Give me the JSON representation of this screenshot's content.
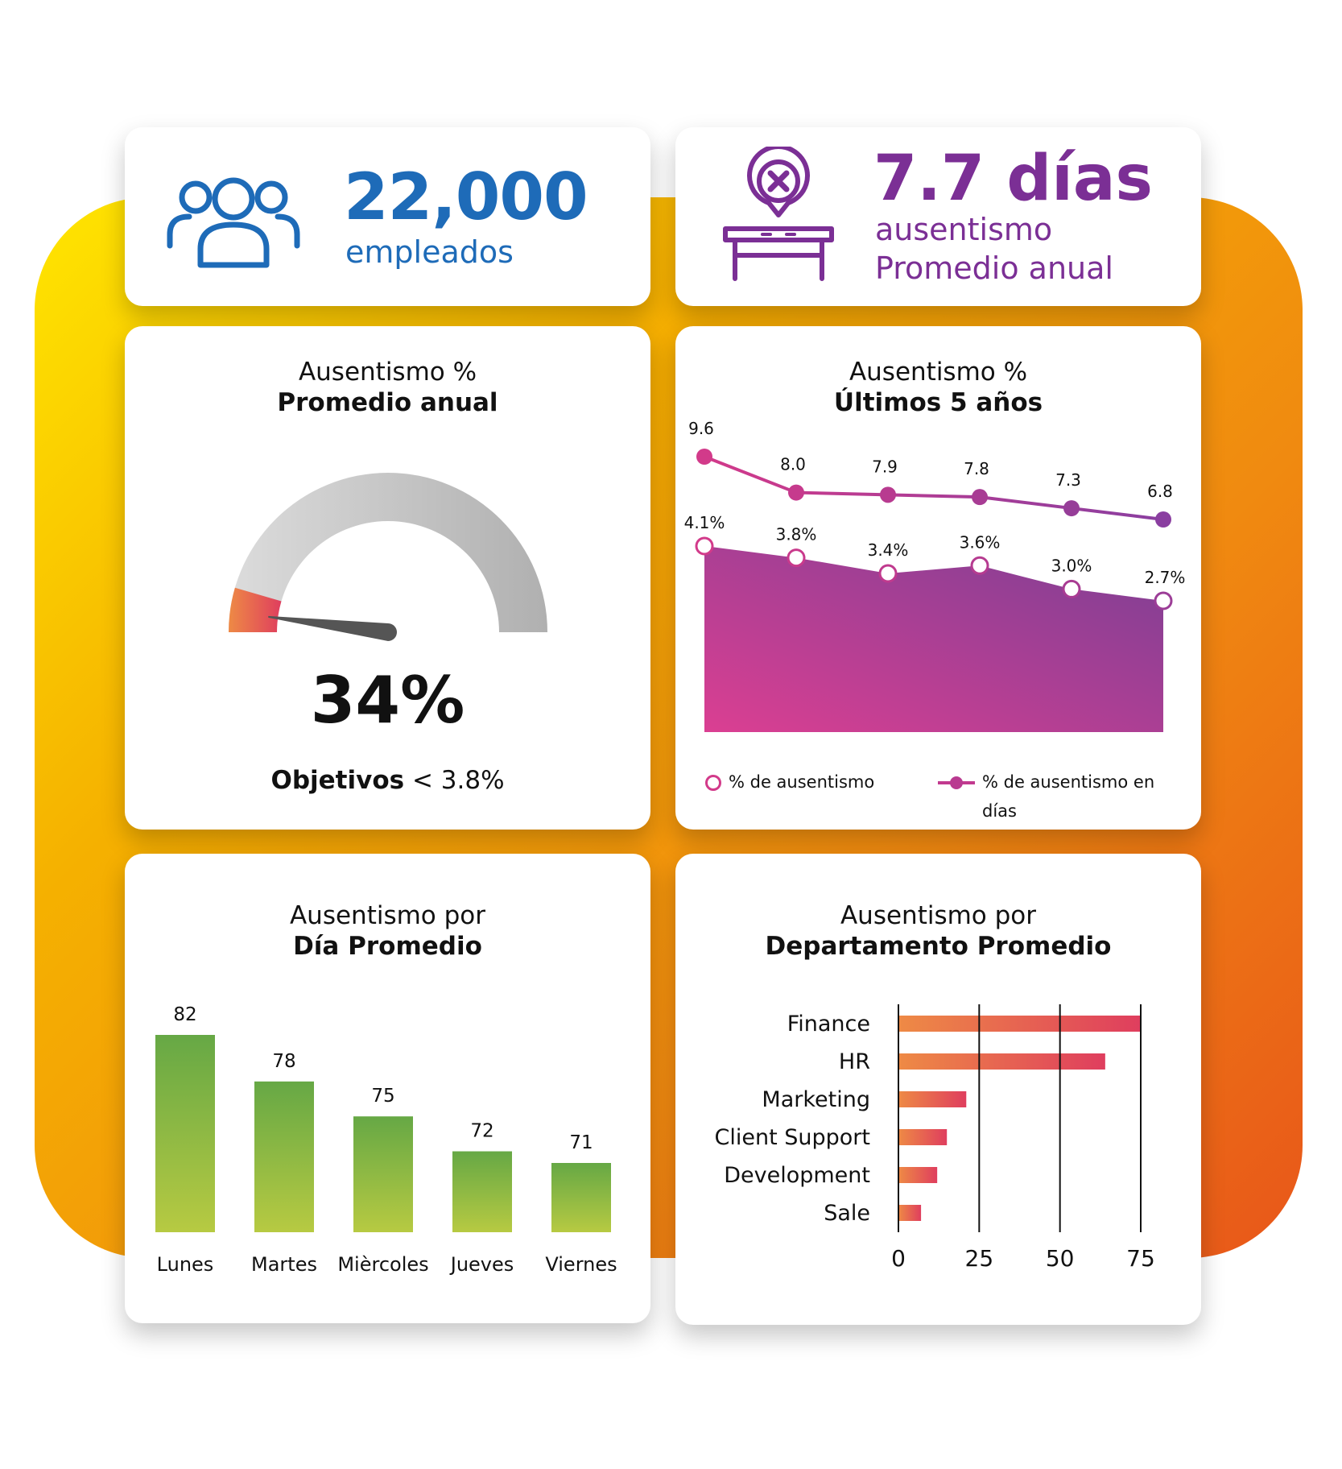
{
  "colors": {
    "blue": "#1e6bb8",
    "purple": "#7b2f95",
    "magenta": "#d23a8a",
    "gauge_gray": "#bdbdbd",
    "needle": "#555555",
    "bar_green_top": "#6aab45",
    "bar_green_bottom": "#b5c941",
    "bar_orange": "#ee8a45",
    "bar_red": "#df3e5e"
  },
  "kpi_employees": {
    "icon": "people-group-icon",
    "value": "22,000",
    "label": "empleados"
  },
  "kpi_absence": {
    "icon": "desk-absence-icon",
    "value": "7.7 días",
    "label1": "ausentismo",
    "label2": "Promedio anual"
  },
  "gauge_card": {
    "title1": "Ausentismo %",
    "title2": "Promedio anual",
    "value_text": "34%",
    "goal_label": "Objetivos",
    "goal_value": "< 3.8%",
    "chart_data": {
      "type": "gauge",
      "value": 0.34,
      "red_zone_fraction": 0.09
    }
  },
  "line_card": {
    "title1": "Ausentismo %",
    "title2": "Últimos 5 años",
    "chart_data": {
      "type": "area",
      "x_count": 6,
      "series": [
        {
          "name": "% de ausentismo en días",
          "type": "line",
          "values": [
            9.6,
            8.0,
            7.9,
            7.8,
            7.3,
            6.8
          ],
          "labels": [
            "9.6",
            "8.0",
            "7.9",
            "7.8",
            "7.3",
            "6.8"
          ]
        },
        {
          "name": "% de ausentismo",
          "type": "area",
          "values": [
            4.1,
            3.8,
            3.4,
            3.6,
            3.0,
            2.7
          ],
          "labels": [
            "4.1%",
            "3.8%",
            "3.4%",
            "3.6%",
            "3.0%",
            "2.7%"
          ]
        }
      ],
      "legend_position": "bottom"
    },
    "legend": [
      "% de ausentismo",
      "% de ausentismo en días"
    ]
  },
  "day_card": {
    "title1": "Ausentismo por",
    "title2": "Día Promedio",
    "chart_data": {
      "type": "bar",
      "categories": [
        "Lunes",
        "Martes",
        "Mièrcoles",
        "Jueves",
        "Viernes"
      ],
      "values": [
        82,
        78,
        75,
        72,
        71
      ]
    }
  },
  "dept_card": {
    "title1": "Ausentismo por",
    "title2": "Departamento Promedio",
    "chart_data": {
      "type": "bar",
      "orientation": "horizontal",
      "categories": [
        "Finance",
        "HR",
        "Marketing",
        "Client Support",
        "Development",
        "Sale"
      ],
      "values": [
        75,
        64,
        21,
        15,
        12,
        7
      ],
      "xlim": [
        0,
        75
      ],
      "xticks": [
        "0",
        "25",
        "50",
        "75"
      ],
      "grid": true
    }
  }
}
